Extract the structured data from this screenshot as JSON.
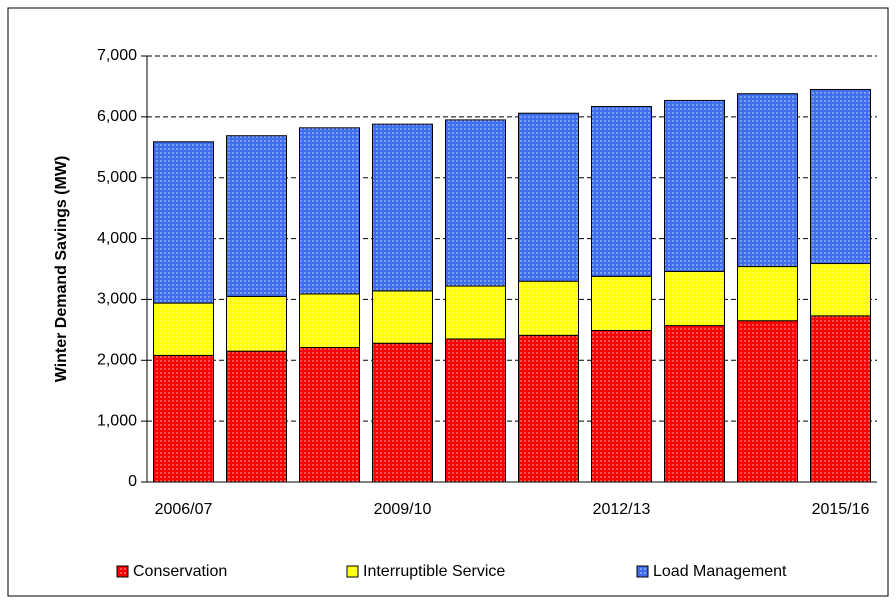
{
  "chart_data": {
    "type": "stacked_bar",
    "y_label": "Winter Demand Savings (MW)",
    "categories": [
      "2006/07",
      null,
      null,
      "2009/10",
      null,
      null,
      "2012/13",
      null,
      null,
      "2015/16"
    ],
    "series": [
      {
        "name": "Conservation",
        "color": "#ff0000",
        "values": [
          2080,
          2150,
          2210,
          2280,
          2350,
          2410,
          2490,
          2570,
          2650,
          2730
        ]
      },
      {
        "name": "Interruptible Service",
        "color": "#ffff00",
        "values": [
          860,
          900,
          880,
          860,
          870,
          890,
          890,
          890,
          890,
          860
        ]
      },
      {
        "name": "Load Management",
        "color": "#3f6fef",
        "values": [
          2650,
          2640,
          2730,
          2740,
          2730,
          2760,
          2790,
          2810,
          2840,
          2860
        ]
      }
    ],
    "ylim": [
      0,
      7000
    ],
    "yticks": [
      0,
      {
        "value": 1000,
        "label": "1,000"
      },
      {
        "value": 2000,
        "label": "2,000"
      },
      {
        "value": 3000,
        "label": "3,000"
      },
      {
        "value": 4000,
        "label": "4,000"
      },
      {
        "value": 5000,
        "label": "5,000"
      },
      {
        "value": 6000,
        "label": "6,000"
      },
      {
        "value": 7000,
        "label": "7,000"
      }
    ],
    "grid": true,
    "legend": "bottom"
  }
}
